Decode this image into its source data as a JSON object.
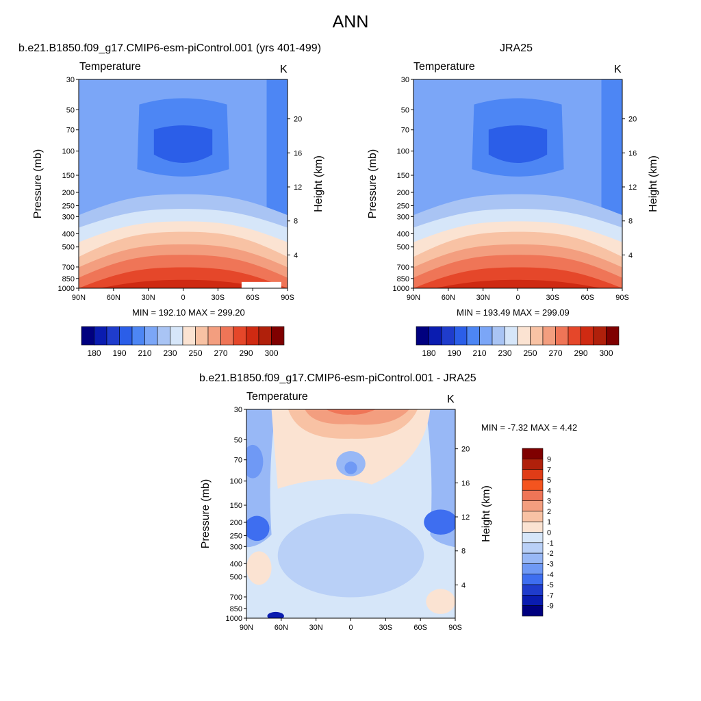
{
  "figure": {
    "title": "ANN"
  },
  "chart_data": [
    {
      "type": "heatmap",
      "title": "b.e21.B1850.f09_g17.CMIP6-esm-piControl.001 (yrs 401-499)",
      "subtitle": "Temperature",
      "units": "K",
      "ylabel": "Pressure (mb)",
      "y2label": "Height (km)",
      "x_ticks": [
        "90N",
        "60N",
        "30N",
        "0",
        "30S",
        "60S",
        "90S"
      ],
      "y_ticks": [
        30,
        50,
        70,
        100,
        150,
        200,
        250,
        300,
        400,
        500,
        700,
        850,
        1000
      ],
      "y2_ticks": [
        20,
        16,
        12,
        8,
        4
      ],
      "stats": "MIN = 192.10  MAX = 299.20",
      "min": 192.1,
      "max": 299.2,
      "colorbar_labels": [
        180,
        190,
        210,
        230,
        250,
        270,
        290,
        300
      ],
      "colorbar_colors": [
        "#00007f",
        "#0a1cb0",
        "#1f3ccc",
        "#2b5ee8",
        "#4d86f4",
        "#7ba6f7",
        "#a9c4f4",
        "#d6e6f9",
        "#fbe3d2",
        "#f8c2a4",
        "#f39e7f",
        "#ef7557",
        "#e5472a",
        "#cf2a12",
        "#b0200b",
        "#7f0000"
      ]
    },
    {
      "type": "heatmap",
      "title": "JRA25",
      "subtitle": "Temperature",
      "units": "K",
      "ylabel": "Pressure (mb)",
      "y2label": "Height (km)",
      "x_ticks": [
        "90N",
        "60N",
        "30N",
        "0",
        "30S",
        "60S",
        "90S"
      ],
      "y_ticks": [
        30,
        50,
        70,
        100,
        150,
        200,
        250,
        300,
        400,
        500,
        700,
        850,
        1000
      ],
      "y2_ticks": [
        20,
        16,
        12,
        8,
        4
      ],
      "stats": "MIN = 193.49  MAX = 299.09",
      "min": 193.49,
      "max": 299.09,
      "colorbar_labels": [
        180,
        190,
        210,
        230,
        250,
        270,
        290,
        300
      ],
      "colorbar_colors": [
        "#00007f",
        "#0a1cb0",
        "#1f3ccc",
        "#2b5ee8",
        "#4d86f4",
        "#7ba6f7",
        "#a9c4f4",
        "#d6e6f9",
        "#fbe3d2",
        "#f8c2a4",
        "#f39e7f",
        "#ef7557",
        "#e5472a",
        "#cf2a12",
        "#b0200b",
        "#7f0000"
      ]
    },
    {
      "type": "heatmap",
      "title": "b.e21.B1850.f09_g17.CMIP6-esm-piControl.001 - JRA25",
      "subtitle": "Temperature",
      "units": "K",
      "ylabel": "Pressure (mb)",
      "y2label": "Height (km)",
      "x_ticks": [
        "90N",
        "60N",
        "30N",
        "0",
        "30S",
        "60S",
        "90S"
      ],
      "y_ticks": [
        30,
        50,
        70,
        100,
        150,
        200,
        250,
        300,
        400,
        500,
        700,
        850,
        1000
      ],
      "y2_ticks": [
        20,
        16,
        12,
        8,
        4
      ],
      "stats": "MIN =  -7.32  MAX =   4.42",
      "min": -7.32,
      "max": 4.42,
      "colorbar_labels": [
        "9",
        "7",
        "5",
        "4",
        "3",
        "2",
        "1",
        "0",
        "-1",
        "-2",
        "-3",
        "-4",
        "-5",
        "-7",
        "-9"
      ],
      "colorbar_colors": [
        "#7f0000",
        "#b0200b",
        "#e03c17",
        "#f4541f",
        "#ef7557",
        "#f39e7f",
        "#f8c2a4",
        "#fbe3d2",
        "#d6e6f9",
        "#b9d0f7",
        "#98b8f6",
        "#6f99f5",
        "#3e6ef0",
        "#1f3ccc",
        "#0a1cb0",
        "#00007f"
      ]
    }
  ]
}
